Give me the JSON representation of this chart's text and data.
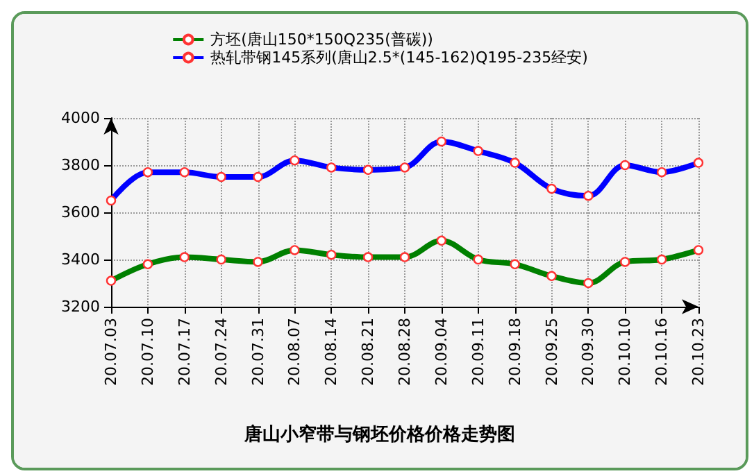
{
  "chart_data": {
    "type": "line",
    "title": "唐山小窄带与钢坯价格价格走势图",
    "categories": [
      "20.07.03",
      "20.07.10",
      "20.07.17",
      "20.07.24",
      "20.07.31",
      "20.08.07",
      "20.08.14",
      "20.08.21",
      "20.08.28",
      "20.09.04",
      "20.09.11",
      "20.09.18",
      "20.09.25",
      "20.09.30",
      "20.10.10",
      "20.10.16",
      "20.10.23"
    ],
    "series": [
      {
        "name": "方坯(唐山150*150Q235(普碳))",
        "color": "#008000",
        "values": [
          3310,
          3380,
          3410,
          3400,
          3390,
          3440,
          3420,
          3410,
          3410,
          3480,
          3400,
          3380,
          3330,
          3300,
          3390,
          3400,
          3440
        ]
      },
      {
        "name": "热轧带钢145系列(唐山2.5*(145-162)Q195-235经安)",
        "color": "#0000ff",
        "values": [
          3650,
          3770,
          3770,
          3750,
          3750,
          3820,
          3790,
          3780,
          3790,
          3900,
          3860,
          3810,
          3700,
          3670,
          3800,
          3770,
          3810
        ]
      }
    ],
    "ylim": [
      3200,
      4000
    ],
    "yticks": [
      3200,
      3400,
      3600,
      3800,
      4000
    ],
    "grid": true,
    "legend": "top",
    "marker": "circle",
    "line_style": "solid"
  }
}
